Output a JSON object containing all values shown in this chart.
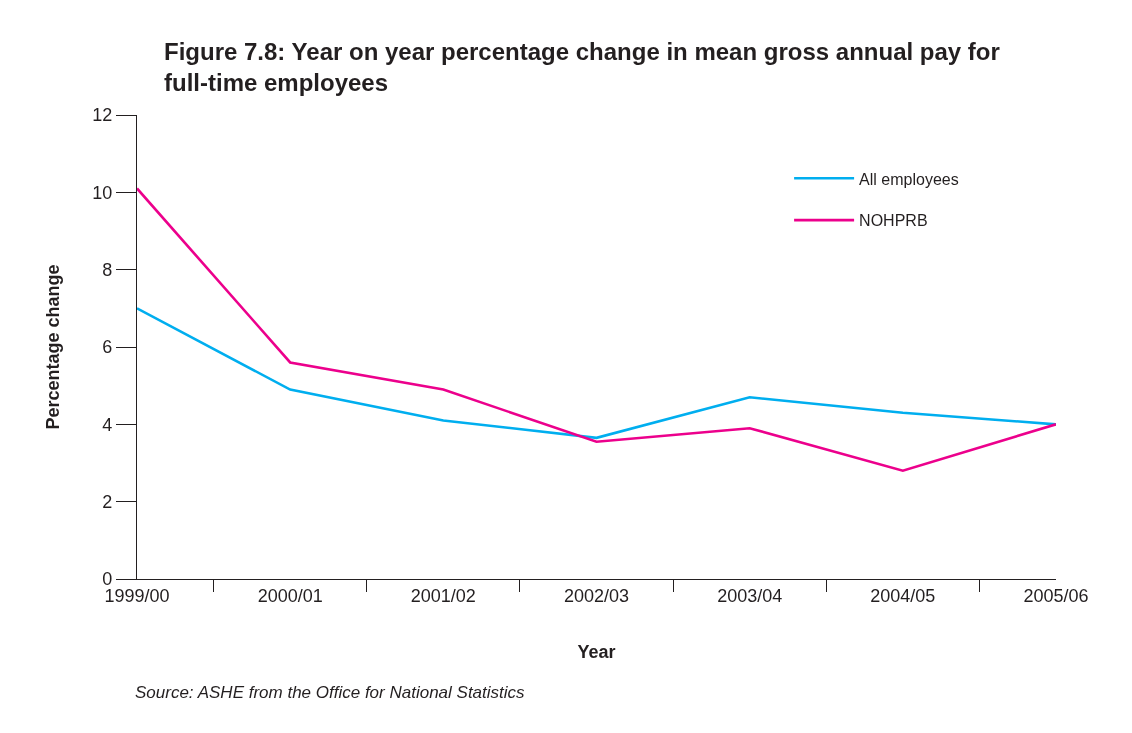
{
  "chart_data": {
    "type": "line",
    "title": "Figure 7.8: Year on year percentage change in mean gross annual pay for full-time employees",
    "xlabel": "Year",
    "ylabel": "Percentage change",
    "categories": [
      "1999/00",
      "2000/01",
      "2001/02",
      "2002/03",
      "2003/04",
      "2004/05",
      "2005/06"
    ],
    "series": [
      {
        "name": "All employees",
        "color": "#00aeef",
        "values": [
          7.0,
          4.9,
          4.1,
          3.65,
          4.7,
          4.3,
          4.0
        ]
      },
      {
        "name": "NOHPRB",
        "color": "#ec008c",
        "values": [
          10.1,
          5.6,
          4.9,
          3.55,
          3.9,
          2.8,
          4.0
        ]
      }
    ],
    "ylim": [
      0,
      12
    ],
    "yticks": [
      0,
      2,
      4,
      6,
      8,
      10,
      12
    ],
    "legend": "top right",
    "marker": "none",
    "line_style": "solid",
    "annotations": [
      "Source: ASHE from the Office for National Statistics"
    ]
  }
}
